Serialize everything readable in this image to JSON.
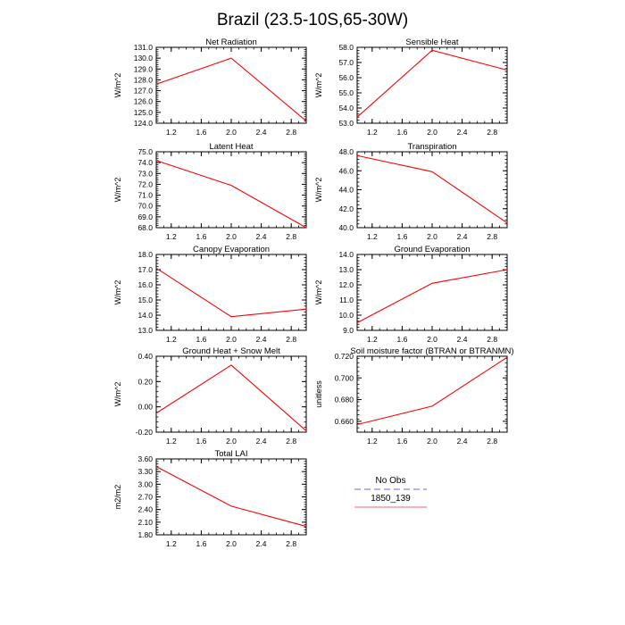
{
  "figure": {
    "title": "Brazil (23.5-10S,65-30W)"
  },
  "colors": {
    "series_line": "#ff0000",
    "obs_line": "#9999ff",
    "legend_series_line": "#ff8080",
    "axis": "#000000"
  },
  "legend": {
    "entries": [
      {
        "label": "No Obs",
        "style": "dashed",
        "color": "#9999ff"
      },
      {
        "label": "1850_139",
        "style": "solid",
        "color": "#ff8080"
      }
    ]
  },
  "chart_data": [
    {
      "type": "line",
      "title": "Net Radiation",
      "ylabel": "W/m^2",
      "xlim": [
        1.0,
        3.0
      ],
      "xticks": [
        "1.2",
        "1.6",
        "2.0",
        "2.4",
        "2.8"
      ],
      "ylim": [
        124.0,
        131.0
      ],
      "yticks": [
        "124.0",
        "125.0",
        "126.0",
        "127.0",
        "128.0",
        "129.0",
        "130.0",
        "131.0"
      ],
      "series": [
        {
          "name": "1850_139",
          "x": [
            1,
            2,
            3
          ],
          "y": [
            127.6,
            130.0,
            124.2
          ]
        }
      ]
    },
    {
      "type": "line",
      "title": "Sensible Heat",
      "ylabel": "W/m^2",
      "xlim": [
        1.0,
        3.0
      ],
      "xticks": [
        "1.2",
        "1.6",
        "2.0",
        "2.4",
        "2.8"
      ],
      "ylim": [
        53.0,
        58.0
      ],
      "yticks": [
        "53.0",
        "54.0",
        "55.0",
        "56.0",
        "57.0",
        "58.0"
      ],
      "series": [
        {
          "name": "1850_139",
          "x": [
            1,
            2,
            3
          ],
          "y": [
            53.4,
            57.8,
            56.5
          ]
        }
      ]
    },
    {
      "type": "line",
      "title": "Latent Heat",
      "ylabel": "W/m^2",
      "xlim": [
        1.0,
        3.0
      ],
      "xticks": [
        "1.2",
        "1.6",
        "2.0",
        "2.4",
        "2.8"
      ],
      "ylim": [
        68.0,
        75.0
      ],
      "yticks": [
        "68.0",
        "69.0",
        "70.0",
        "71.0",
        "72.0",
        "73.0",
        "74.0",
        "75.0"
      ],
      "series": [
        {
          "name": "1850_139",
          "x": [
            1,
            2,
            3
          ],
          "y": [
            74.2,
            71.9,
            68.0
          ]
        }
      ]
    },
    {
      "type": "line",
      "title": "Transpiration",
      "ylabel": "W/m^2",
      "xlim": [
        1.0,
        3.0
      ],
      "xticks": [
        "1.2",
        "1.6",
        "2.0",
        "2.4",
        "2.8"
      ],
      "ylim": [
        40.0,
        48.0
      ],
      "yticks": [
        "40.0",
        "42.0",
        "44.0",
        "46.0",
        "48.0"
      ],
      "series": [
        {
          "name": "1850_139",
          "x": [
            1,
            2,
            3
          ],
          "y": [
            47.6,
            45.9,
            40.5
          ]
        }
      ]
    },
    {
      "type": "line",
      "title": "Canopy Evaporation",
      "ylabel": "W/m^2",
      "xlim": [
        1.0,
        3.0
      ],
      "xticks": [
        "1.2",
        "1.6",
        "2.0",
        "2.4",
        "2.8"
      ],
      "ylim": [
        13.0,
        18.0
      ],
      "yticks": [
        "13.0",
        "14.0",
        "15.0",
        "16.0",
        "17.0",
        "18.0"
      ],
      "series": [
        {
          "name": "1850_139",
          "x": [
            1,
            2,
            3
          ],
          "y": [
            17.1,
            13.9,
            14.4
          ]
        }
      ]
    },
    {
      "type": "line",
      "title": "Ground Evaporation",
      "ylabel": "W/m^2",
      "xlim": [
        1.0,
        3.0
      ],
      "xticks": [
        "1.2",
        "1.6",
        "2.0",
        "2.4",
        "2.8"
      ],
      "ylim": [
        9.0,
        14.0
      ],
      "yticks": [
        "9.0",
        "10.0",
        "11.0",
        "12.0",
        "13.0",
        "14.0"
      ],
      "series": [
        {
          "name": "1850_139",
          "x": [
            1,
            2,
            3
          ],
          "y": [
            9.5,
            12.1,
            13.0
          ]
        }
      ]
    },
    {
      "type": "line",
      "title": "Ground Heat + Snow Melt",
      "ylabel": "W/m^2",
      "xlim": [
        1.0,
        3.0
      ],
      "xticks": [
        "1.2",
        "1.6",
        "2.0",
        "2.4",
        "2.8"
      ],
      "ylim": [
        -0.2,
        0.4
      ],
      "yticks": [
        "-0.20",
        "0.00",
        "0.20",
        "0.40"
      ],
      "series": [
        {
          "name": "1850_139",
          "x": [
            1,
            2,
            3
          ],
          "y": [
            -0.05,
            0.33,
            -0.19
          ]
        }
      ]
    },
    {
      "type": "line",
      "title": "Soil moisture factor (BTRAN or BTRANMN)",
      "ylabel": "unitless",
      "xlim": [
        1.0,
        3.0
      ],
      "xticks": [
        "1.2",
        "1.6",
        "2.0",
        "2.4",
        "2.8"
      ],
      "ylim": [
        0.65,
        0.72
      ],
      "yticks": [
        "0.660",
        "0.680",
        "0.700",
        "0.720"
      ],
      "series": [
        {
          "name": "1850_139",
          "x": [
            1,
            2,
            3
          ],
          "y": [
            0.657,
            0.674,
            0.719
          ]
        }
      ]
    },
    {
      "type": "line",
      "title": "Total LAI",
      "ylabel": "m2/m2",
      "xlim": [
        1.0,
        3.0
      ],
      "xticks": [
        "1.2",
        "1.6",
        "2.0",
        "2.4",
        "2.8"
      ],
      "ylim": [
        1.8,
        3.6
      ],
      "yticks": [
        "1.80",
        "2.10",
        "2.40",
        "2.70",
        "3.00",
        "3.30",
        "3.60"
      ],
      "series": [
        {
          "name": "1850_139",
          "x": [
            1,
            2,
            3
          ],
          "y": [
            3.42,
            2.48,
            2.0
          ]
        }
      ]
    }
  ]
}
